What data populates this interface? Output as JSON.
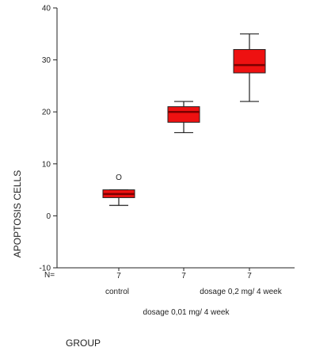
{
  "chart_data": {
    "type": "boxplot",
    "ylabel": "APOPTOSIS CELLS",
    "xlabel": "GROUP",
    "ylim": [
      -10,
      40
    ],
    "yticks": [
      -10,
      0,
      10,
      20,
      30,
      40
    ],
    "n_label": "N=",
    "categories": [
      "control",
      "dosage 0,01 mg/ 4 week",
      "dosage 0,2 mg/ 4 week"
    ],
    "n": [
      "7",
      "7",
      "7"
    ],
    "boxes": [
      {
        "whisker_low": 2,
        "q1": 3.5,
        "median": 4.2,
        "q3": 5,
        "whisker_high": 5,
        "outliers": [
          {
            "label": "O",
            "value": 7.5
          }
        ]
      },
      {
        "whisker_low": 16,
        "q1": 18,
        "median": 20,
        "q3": 21,
        "whisker_high": 22,
        "outliers": []
      },
      {
        "whisker_low": 22,
        "q1": 27.5,
        "median": 29,
        "q3": 32,
        "whisker_high": 35,
        "outliers": []
      }
    ],
    "box_color": "#ee1111",
    "median_color": "#7a0000",
    "grid": false
  }
}
